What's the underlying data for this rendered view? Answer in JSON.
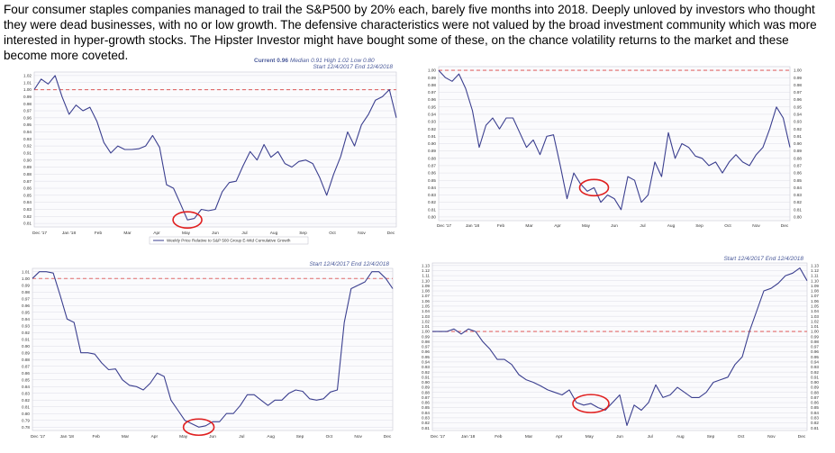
{
  "caption": "Four consumer staples companies managed to trail the S&P500 by 20% each, barely five months into 2018.  Deeply unloved by investors who thought they were dead businesses, with no or low growth.  The defensive characteristics were not valued by the broad investment community which was more interested in hyper-growth stocks. The Hipster Investor might have bought some of these, on the chance volatility returns to the market and these become more coveted.",
  "colors": {
    "line": "#3b3f8f",
    "reference": "#e06a6a",
    "circle": "#e02020",
    "grid": "#d6d6e0"
  },
  "chart_data": [
    {
      "type": "line",
      "header_current": "Current 0.96",
      "header_stats": "Median 0.91  High 1.02  Low 0.80",
      "header_range": "Start 12/4/2017   End 12/4/2018",
      "legend": "Weekly Price Relative to S&P 500 Group E-Wtd Cumulative Growth",
      "x_ticks": [
        "Dec '17",
        "Jan '18",
        "Feb",
        "Mar",
        "Apr",
        "May",
        "Jun",
        "Jul",
        "Aug",
        "Sep",
        "Oct",
        "Nov",
        "Dec"
      ],
      "y_ticks_left": [
        "1.02",
        "1.01",
        "1.00",
        "0.99",
        "0.98",
        "0.97",
        "0.96",
        "0.95",
        "0.94",
        "0.93",
        "0.92",
        "0.91",
        "0.90",
        "0.89",
        "0.88",
        "0.87",
        "0.86",
        "0.85",
        "0.84",
        "0.83",
        "0.82",
        "0.81"
      ],
      "y_ticks_right": [],
      "ylim": [
        0.805,
        1.025
      ],
      "reference_y": 1.0,
      "x": [
        0,
        1,
        2,
        3,
        4,
        5,
        6,
        7,
        8,
        9,
        10,
        11,
        12,
        13,
        14,
        15,
        16,
        17,
        18,
        19,
        20,
        21,
        22,
        23,
        24,
        25,
        26,
        27,
        28,
        29,
        30,
        31,
        32,
        33,
        34,
        35,
        36,
        37,
        38,
        39,
        40,
        41,
        42,
        43,
        44,
        45,
        46,
        47,
        48,
        49,
        50,
        51,
        52
      ],
      "values": [
        1.0,
        1.015,
        1.008,
        1.02,
        0.99,
        0.965,
        0.978,
        0.97,
        0.975,
        0.955,
        0.925,
        0.91,
        0.92,
        0.915,
        0.915,
        0.916,
        0.92,
        0.935,
        0.918,
        0.865,
        0.86,
        0.838,
        0.815,
        0.817,
        0.83,
        0.828,
        0.83,
        0.855,
        0.868,
        0.87,
        0.892,
        0.912,
        0.9,
        0.922,
        0.904,
        0.912,
        0.895,
        0.89,
        0.898,
        0.9,
        0.895,
        0.875,
        0.85,
        0.88,
        0.905,
        0.94,
        0.92,
        0.95,
        0.965,
        0.985,
        0.99,
        1.0,
        0.96
      ],
      "circle_x": 22
    },
    {
      "type": "line",
      "header_current": "",
      "header_stats": "",
      "header_range": "",
      "legend": "",
      "x_ticks": [
        "Dec '17",
        "Jan '18",
        "Feb",
        "Mar",
        "Apr",
        "May",
        "Jun",
        "Jul",
        "Aug",
        "Sep",
        "Oct",
        "Nov",
        "Dec"
      ],
      "y_ticks_left": [
        "1.00",
        "0.99",
        "0.98",
        "0.97",
        "0.96",
        "0.95",
        "0.94",
        "0.93",
        "0.92",
        "0.91",
        "0.90",
        "0.89",
        "0.88",
        "0.87",
        "0.86",
        "0.85",
        "0.84",
        "0.83",
        "0.82",
        "0.81",
        "0.80"
      ],
      "y_ticks_right": [
        "1.00",
        "0.99",
        "0.98",
        "0.97",
        "0.96",
        "0.95",
        "0.94",
        "0.93",
        "0.92",
        "0.91",
        "0.90",
        "0.89",
        "0.88",
        "0.87",
        "0.86",
        "0.85",
        "0.84",
        "0.83",
        "0.82",
        "0.81",
        "0.80"
      ],
      "ylim": [
        0.795,
        1.005
      ],
      "reference_y": 1.0,
      "x": [
        0,
        1,
        2,
        3,
        4,
        5,
        6,
        7,
        8,
        9,
        10,
        11,
        12,
        13,
        14,
        15,
        16,
        17,
        18,
        19,
        20,
        21,
        22,
        23,
        24,
        25,
        26,
        27,
        28,
        29,
        30,
        31,
        32,
        33,
        34,
        35,
        36,
        37,
        38,
        39,
        40,
        41,
        42,
        43,
        44,
        45,
        46,
        47,
        48,
        49,
        50,
        51,
        52
      ],
      "values": [
        1.0,
        0.99,
        0.985,
        0.995,
        0.975,
        0.945,
        0.895,
        0.925,
        0.935,
        0.92,
        0.935,
        0.935,
        0.915,
        0.895,
        0.905,
        0.885,
        0.91,
        0.912,
        0.87,
        0.825,
        0.86,
        0.845,
        0.835,
        0.84,
        0.82,
        0.83,
        0.825,
        0.81,
        0.855,
        0.85,
        0.82,
        0.83,
        0.875,
        0.855,
        0.915,
        0.88,
        0.9,
        0.895,
        0.883,
        0.88,
        0.87,
        0.875,
        0.86,
        0.875,
        0.885,
        0.875,
        0.87,
        0.885,
        0.895,
        0.92,
        0.95,
        0.935,
        0.895
      ],
      "circle_x": 23
    },
    {
      "type": "line",
      "header_current": "",
      "header_stats": "",
      "header_range": "Start 12/4/2017   End 12/4/2018",
      "legend": "",
      "x_ticks": [
        "Dec '17",
        "Jan '18",
        "Feb",
        "Mar",
        "Apr",
        "May",
        "Jun",
        "Jul",
        "Aug",
        "Sep",
        "Oct",
        "Nov",
        "Dec"
      ],
      "y_ticks_left": [
        "1.01",
        "1.00",
        "0.99",
        "0.98",
        "0.97",
        "0.96",
        "0.95",
        "0.94",
        "0.93",
        "0.92",
        "0.91",
        "0.90",
        "0.89",
        "0.88",
        "0.87",
        "0.86",
        "0.85",
        "0.84",
        "0.83",
        "0.82",
        "0.81",
        "0.80",
        "0.79",
        "0.78"
      ],
      "y_ticks_right": [],
      "ylim": [
        0.775,
        1.015
      ],
      "reference_y": 1.0,
      "x": [
        0,
        1,
        2,
        3,
        4,
        5,
        6,
        7,
        8,
        9,
        10,
        11,
        12,
        13,
        14,
        15,
        16,
        17,
        18,
        19,
        20,
        21,
        22,
        23,
        24,
        25,
        26,
        27,
        28,
        29,
        30,
        31,
        32,
        33,
        34,
        35,
        36,
        37,
        38,
        39,
        40,
        41,
        42,
        43,
        44,
        45,
        46,
        47,
        48,
        49,
        50,
        51,
        52
      ],
      "values": [
        1.0,
        1.01,
        1.01,
        1.008,
        0.975,
        0.94,
        0.935,
        0.89,
        0.89,
        0.888,
        0.875,
        0.865,
        0.866,
        0.85,
        0.842,
        0.84,
        0.835,
        0.845,
        0.86,
        0.855,
        0.82,
        0.805,
        0.79,
        0.785,
        0.78,
        0.782,
        0.788,
        0.788,
        0.8,
        0.8,
        0.812,
        0.828,
        0.828,
        0.82,
        0.812,
        0.82,
        0.82,
        0.83,
        0.835,
        0.833,
        0.822,
        0.82,
        0.822,
        0.832,
        0.835,
        0.935,
        0.985,
        0.99,
        0.995,
        1.01,
        1.01,
        1.0,
        0.985
      ],
      "circle_x": 24
    },
    {
      "type": "line",
      "header_current": "",
      "header_stats": "",
      "header_range": "Start 12/4/2017   End 12/4/2018",
      "legend": "",
      "x_ticks": [
        "Dec '17",
        "Jan '18",
        "Feb",
        "Mar",
        "Apr",
        "May",
        "Jun",
        "Jul",
        "Aug",
        "Sep",
        "Oct",
        "Nov",
        "Dec"
      ],
      "y_ticks_left": [
        "1.13",
        "1.12",
        "1.11",
        "1.10",
        "1.09",
        "1.08",
        "1.07",
        "1.06",
        "1.05",
        "1.04",
        "1.03",
        "1.02",
        "1.01",
        "1.00",
        "0.99",
        "0.98",
        "0.97",
        "0.96",
        "0.95",
        "0.94",
        "0.93",
        "0.92",
        "0.91",
        "0.90",
        "0.89",
        "0.88",
        "0.87",
        "0.86",
        "0.85",
        "0.84",
        "0.83",
        "0.82",
        "0.81"
      ],
      "y_ticks_right": [
        "1.13",
        "1.12",
        "1.11",
        "1.10",
        "1.09",
        "1.08",
        "1.07",
        "1.06",
        "1.05",
        "1.04",
        "1.03",
        "1.02",
        "1.01",
        "1.00",
        "0.99",
        "0.98",
        "0.97",
        "0.96",
        "0.95",
        "0.94",
        "0.93",
        "0.92",
        "0.91",
        "0.90",
        "0.89",
        "0.88",
        "0.87",
        "0.86",
        "0.85",
        "0.84",
        "0.83",
        "0.82",
        "0.81"
      ],
      "ylim": [
        0.805,
        1.135
      ],
      "reference_y": 1.0,
      "x": [
        0,
        1,
        2,
        3,
        4,
        5,
        6,
        7,
        8,
        9,
        10,
        11,
        12,
        13,
        14,
        15,
        16,
        17,
        18,
        19,
        20,
        21,
        22,
        23,
        24,
        25,
        26,
        27,
        28,
        29,
        30,
        31,
        32,
        33,
        34,
        35,
        36,
        37,
        38,
        39,
        40,
        41,
        42,
        43,
        44,
        45,
        46,
        47,
        48,
        49,
        50,
        51,
        52
      ],
      "values": [
        1.0,
        1.0,
        1.0,
        1.005,
        0.995,
        1.005,
        1.0,
        0.98,
        0.965,
        0.945,
        0.945,
        0.935,
        0.915,
        0.905,
        0.9,
        0.893,
        0.885,
        0.88,
        0.875,
        0.885,
        0.86,
        0.855,
        0.858,
        0.85,
        0.845,
        0.86,
        0.875,
        0.815,
        0.855,
        0.845,
        0.86,
        0.895,
        0.87,
        0.875,
        0.89,
        0.88,
        0.87,
        0.87,
        0.88,
        0.9,
        0.905,
        0.91,
        0.935,
        0.95,
        1.0,
        1.04,
        1.08,
        1.085,
        1.095,
        1.11,
        1.115,
        1.125,
        1.1
      ],
      "circle_x": 22
    }
  ]
}
